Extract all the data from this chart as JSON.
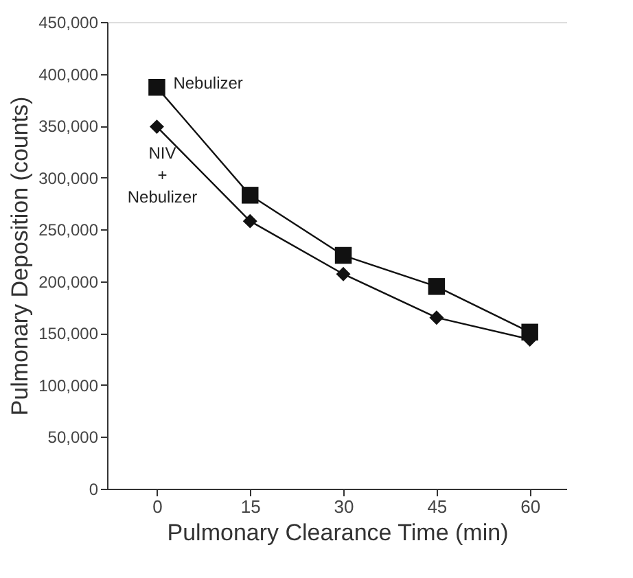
{
  "chart_data": {
    "type": "line",
    "xlabel": "Pulmonary Clearance Time (min)",
    "ylabel": "Pulmonary Deposition (counts)",
    "x": [
      0,
      15,
      30,
      45,
      60
    ],
    "xlim": [
      -8,
      66
    ],
    "xticks": [
      0,
      15,
      30,
      45,
      60
    ],
    "ylim": [
      0,
      450000
    ],
    "yticks": [
      {
        "value": 0,
        "label": "0"
      },
      {
        "value": 50000,
        "label": "50,000"
      },
      {
        "value": 100000,
        "label": "100,000"
      },
      {
        "value": 150000,
        "label": "150,000"
      },
      {
        "value": 200000,
        "label": "200,000"
      },
      {
        "value": 250000,
        "label": "250,000"
      },
      {
        "value": 300000,
        "label": "300,000"
      },
      {
        "value": 350000,
        "label": "350,000"
      },
      {
        "value": 400000,
        "label": "400,000"
      },
      {
        "value": 450000,
        "label": "450,000"
      }
    ],
    "grid": false,
    "legend": false,
    "series": [
      {
        "name": "Nebulizer",
        "color": "#111111",
        "marker": "square",
        "values": [
          387000,
          283000,
          225000,
          195000,
          151000
        ]
      },
      {
        "name": "NIV + Nebulizer",
        "color": "#111111",
        "marker": "diamond",
        "values": [
          349000,
          258000,
          207000,
          165000,
          144000
        ]
      }
    ]
  }
}
